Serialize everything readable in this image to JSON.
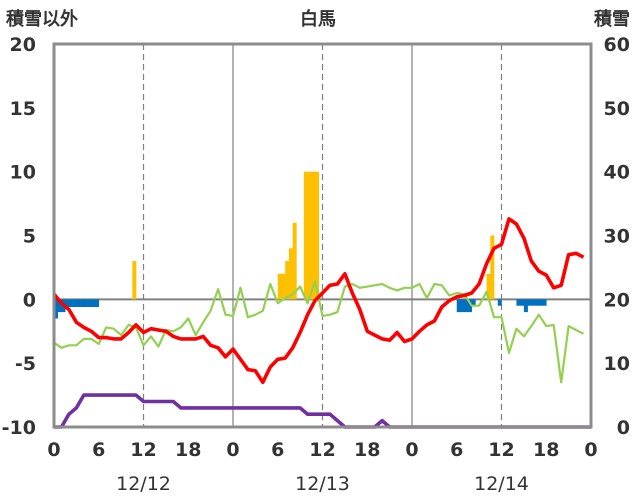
{
  "chart_data": {
    "type": "bar+line",
    "title": "白馬",
    "left_axis_label": "積雪以外",
    "right_axis_label": "積雪",
    "left_ylim": [
      -10,
      20
    ],
    "right_ylim": [
      0,
      60
    ],
    "left_ticks": [
      "-10",
      "-5",
      "0",
      "5",
      "10",
      "15",
      "20"
    ],
    "right_ticks": [
      "0",
      "10",
      "20",
      "30",
      "40",
      "50",
      "60"
    ],
    "xlim": [
      0,
      72
    ],
    "x_ticks": [
      "0",
      "6",
      "12",
      "18",
      "0",
      "6",
      "12",
      "18",
      "0",
      "6",
      "12",
      "18",
      "0"
    ],
    "dates": [
      "12/12",
      "12/13",
      "12/14"
    ],
    "colors": {
      "orange_bar": "#ffc000",
      "blue_bar": "#0070c0",
      "red_line": "#ff0000",
      "green_line": "#92d050",
      "purple_line": "#7030a0",
      "frame": "#8c8c8c",
      "zero_line": "#808080",
      "grid": "#808080"
    },
    "orange_bars": [
      {
        "x": 10.5,
        "value": 3.0
      },
      {
        "x": 30,
        "value": 2.0
      },
      {
        "x": 30.5,
        "value": 2.0
      },
      {
        "x": 31,
        "value": 3.0
      },
      {
        "x": 31.5,
        "value": 4.0
      },
      {
        "x": 32,
        "value": 6.0
      },
      {
        "x": 33.5,
        "value": 10.0
      },
      {
        "x": 34,
        "value": 10.0
      },
      {
        "x": 34.5,
        "value": 10.0
      },
      {
        "x": 35,
        "value": 10.0
      },
      {
        "x": 58,
        "value": 2.0
      },
      {
        "x": 58.5,
        "value": 5.0
      }
    ],
    "blue_bars": [
      {
        "x": 0,
        "value": -1.5
      },
      {
        "x": 0.5,
        "value": -1.0
      },
      {
        "x": 1,
        "value": -1.0
      },
      {
        "x": 1.5,
        "value": -0.6
      },
      {
        "x": 2,
        "value": -0.6
      },
      {
        "x": 2.5,
        "value": -0.6
      },
      {
        "x": 3,
        "value": -0.6
      },
      {
        "x": 3.5,
        "value": -0.6
      },
      {
        "x": 4,
        "value": -0.6
      },
      {
        "x": 4.5,
        "value": -0.6
      },
      {
        "x": 5,
        "value": -0.6
      },
      {
        "x": 5.5,
        "value": -0.6
      },
      {
        "x": 54,
        "value": -1.0
      },
      {
        "x": 54.5,
        "value": -1.0
      },
      {
        "x": 55,
        "value": -1.0
      },
      {
        "x": 55.5,
        "value": -1.0
      },
      {
        "x": 56,
        "value": -0.5
      },
      {
        "x": 59.5,
        "value": -0.5
      },
      {
        "x": 62,
        "value": -0.5
      },
      {
        "x": 62.5,
        "value": -0.5
      },
      {
        "x": 63,
        "value": -1.0
      },
      {
        "x": 63.5,
        "value": -0.5
      },
      {
        "x": 64,
        "value": -0.5
      },
      {
        "x": 64.5,
        "value": -0.5
      },
      {
        "x": 65,
        "value": -0.5
      },
      {
        "x": 65.5,
        "value": -0.5
      }
    ],
    "red_line": [
      [
        0,
        0.4
      ],
      [
        1,
        -0.3
      ],
      [
        2,
        -0.8
      ],
      [
        3,
        -1.8
      ],
      [
        4,
        -2.2
      ],
      [
        5,
        -2.5
      ],
      [
        6,
        -3.0
      ],
      [
        7,
        -3.0
      ],
      [
        8,
        -3.1
      ],
      [
        9,
        -3.1
      ],
      [
        10,
        -2.6
      ],
      [
        11,
        -2.0
      ],
      [
        12,
        -2.6
      ],
      [
        13,
        -2.3
      ],
      [
        14,
        -2.4
      ],
      [
        15,
        -2.5
      ],
      [
        16,
        -2.9
      ],
      [
        17,
        -3.1
      ],
      [
        18,
        -3.1
      ],
      [
        19,
        -3.1
      ],
      [
        20,
        -2.9
      ],
      [
        21,
        -3.6
      ],
      [
        22,
        -3.8
      ],
      [
        23,
        -4.5
      ],
      [
        24,
        -3.9
      ],
      [
        25,
        -4.7
      ],
      [
        26,
        -5.5
      ],
      [
        27,
        -5.6
      ],
      [
        28,
        -6.5
      ],
      [
        29,
        -5.3
      ],
      [
        30,
        -4.7
      ],
      [
        31,
        -4.6
      ],
      [
        32,
        -3.8
      ],
      [
        33,
        -2.6
      ],
      [
        34,
        -1.2
      ],
      [
        35,
        -0.1
      ],
      [
        36,
        0.5
      ],
      [
        37,
        1.1
      ],
      [
        38,
        1.2
      ],
      [
        39,
        2.0
      ],
      [
        40,
        0.5
      ],
      [
        41,
        -0.8
      ],
      [
        42,
        -2.5
      ],
      [
        43,
        -2.8
      ],
      [
        44,
        -3.1
      ],
      [
        45,
        -3.2
      ],
      [
        46,
        -2.6
      ],
      [
        47,
        -3.3
      ],
      [
        48,
        -3.1
      ],
      [
        49,
        -2.5
      ],
      [
        50,
        -2.0
      ],
      [
        51,
        -1.7
      ],
      [
        52,
        -0.6
      ],
      [
        53,
        -0.1
      ],
      [
        54,
        0.2
      ],
      [
        55,
        0.3
      ],
      [
        56,
        0.5
      ],
      [
        57,
        1.2
      ],
      [
        58,
        2.8
      ],
      [
        59,
        4.0
      ],
      [
        60,
        4.3
      ],
      [
        61,
        6.3
      ],
      [
        62,
        5.9
      ],
      [
        63,
        4.8
      ],
      [
        64,
        3.0
      ],
      [
        65,
        2.2
      ],
      [
        66,
        1.9
      ],
      [
        67,
        0.9
      ],
      [
        68,
        1.1
      ],
      [
        69,
        3.5
      ],
      [
        70,
        3.6
      ],
      [
        71,
        3.3
      ]
    ],
    "green_line": [
      [
        0,
        -3.4
      ],
      [
        1,
        -3.8
      ],
      [
        2,
        -3.6
      ],
      [
        3,
        -3.6
      ],
      [
        4,
        -3.1
      ],
      [
        5,
        -3.1
      ],
      [
        6,
        -3.5
      ],
      [
        7,
        -2.2
      ],
      [
        8,
        -2.3
      ],
      [
        9,
        -2.8
      ],
      [
        10,
        -2.0
      ],
      [
        11,
        -2.2
      ],
      [
        12,
        -3.6
      ],
      [
        13,
        -2.9
      ],
      [
        14,
        -3.7
      ],
      [
        15,
        -2.4
      ],
      [
        16,
        -2.5
      ],
      [
        17,
        -2.2
      ],
      [
        18,
        -1.5
      ],
      [
        19,
        -2.8
      ],
      [
        20,
        -1.8
      ],
      [
        21,
        -0.9
      ],
      [
        22,
        0.8
      ],
      [
        23,
        -1.2
      ],
      [
        24,
        -1.3
      ],
      [
        25,
        0.9
      ],
      [
        26,
        -1.4
      ],
      [
        27,
        -1.2
      ],
      [
        28,
        -0.9
      ],
      [
        29,
        1.2
      ],
      [
        30,
        -0.3
      ],
      [
        31,
        0.1
      ],
      [
        32,
        0.4
      ],
      [
        33,
        1.0
      ],
      [
        34,
        -0.3
      ],
      [
        35,
        1.4
      ],
      [
        36,
        -1.3
      ],
      [
        37,
        -1.2
      ],
      [
        38,
        -1.0
      ],
      [
        39,
        1.0
      ],
      [
        40,
        1.2
      ],
      [
        41,
        0.9
      ],
      [
        42,
        1.0
      ],
      [
        43,
        1.1
      ],
      [
        44,
        1.2
      ],
      [
        45,
        0.9
      ],
      [
        46,
        0.7
      ],
      [
        47,
        0.9
      ],
      [
        48,
        0.9
      ],
      [
        49,
        1.2
      ],
      [
        50,
        0.1
      ],
      [
        51,
        1.2
      ],
      [
        52,
        1.1
      ],
      [
        53,
        0.3
      ],
      [
        54,
        0.5
      ],
      [
        55,
        0.4
      ],
      [
        56,
        -0.5
      ],
      [
        57,
        -0.5
      ],
      [
        58,
        0.6
      ],
      [
        59,
        -1.4
      ],
      [
        60,
        -1.4
      ],
      [
        61,
        -4.2
      ],
      [
        62,
        -2.3
      ],
      [
        63,
        -2.9
      ],
      [
        64,
        -2.1
      ],
      [
        65,
        -1.2
      ],
      [
        66,
        -2.1
      ],
      [
        67,
        -2.0
      ],
      [
        68,
        -6.5
      ],
      [
        69,
        -2.1
      ],
      [
        70,
        -2.4
      ],
      [
        71,
        -2.7
      ]
    ],
    "purple_line": [
      [
        0,
        0
      ],
      [
        1,
        0
      ],
      [
        2,
        2
      ],
      [
        3,
        3
      ],
      [
        4,
        5
      ],
      [
        5,
        5
      ],
      [
        6,
        5
      ],
      [
        7,
        5
      ],
      [
        8,
        5
      ],
      [
        9,
        5
      ],
      [
        10,
        5
      ],
      [
        11,
        5
      ],
      [
        12,
        4
      ],
      [
        13,
        4
      ],
      [
        14,
        4
      ],
      [
        15,
        4
      ],
      [
        16,
        4
      ],
      [
        17,
        3
      ],
      [
        18,
        3
      ],
      [
        19,
        3
      ],
      [
        20,
        3
      ],
      [
        21,
        3
      ],
      [
        22,
        3
      ],
      [
        23,
        3
      ],
      [
        24,
        3
      ],
      [
        25,
        3
      ],
      [
        26,
        3
      ],
      [
        27,
        3
      ],
      [
        28,
        3
      ],
      [
        29,
        3
      ],
      [
        30,
        3
      ],
      [
        31,
        3
      ],
      [
        32,
        3
      ],
      [
        33,
        3
      ],
      [
        34,
        2
      ],
      [
        35,
        2
      ],
      [
        36,
        2
      ],
      [
        37,
        2
      ],
      [
        38,
        1
      ],
      [
        39,
        0
      ],
      [
        40,
        0
      ],
      [
        41,
        0
      ],
      [
        42,
        0
      ],
      [
        43,
        0
      ],
      [
        44,
        1
      ],
      [
        45,
        0
      ],
      [
        46,
        0
      ],
      [
        47,
        0
      ],
      [
        48,
        0
      ],
      [
        49,
        0
      ],
      [
        50,
        0
      ],
      [
        51,
        0
      ],
      [
        52,
        0
      ],
      [
        53,
        0
      ],
      [
        54,
        0
      ],
      [
        55,
        0
      ],
      [
        56,
        0
      ],
      [
        57,
        0
      ],
      [
        58,
        0
      ],
      [
        59,
        0
      ],
      [
        60,
        0
      ],
      [
        61,
        0
      ],
      [
        62,
        0
      ],
      [
        63,
        0
      ],
      [
        64,
        0
      ],
      [
        65,
        0
      ],
      [
        66,
        0
      ],
      [
        67,
        0
      ],
      [
        68,
        0
      ],
      [
        69,
        0
      ],
      [
        70,
        0
      ],
      [
        71,
        0
      ],
      [
        72,
        0
      ]
    ]
  }
}
